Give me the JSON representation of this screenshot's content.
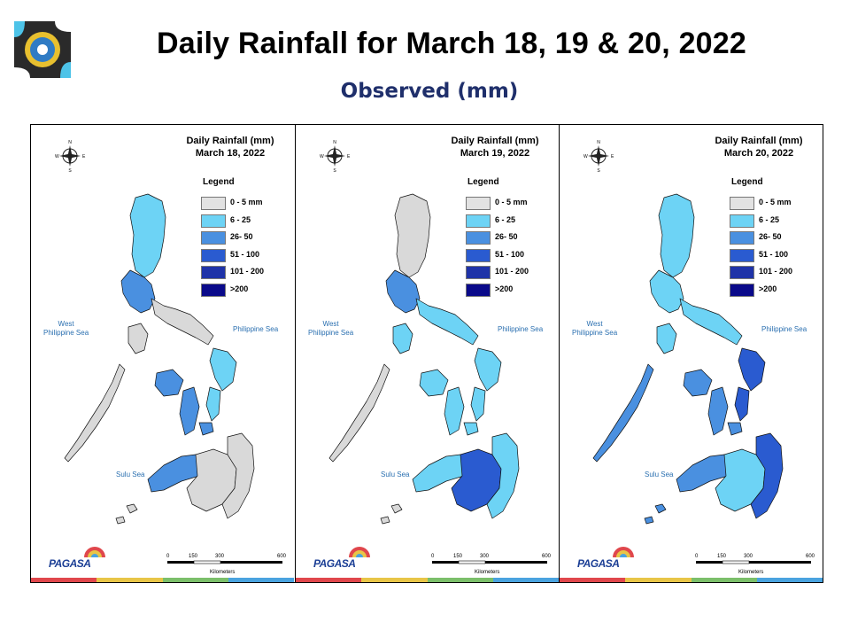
{
  "header": {
    "title": "Daily Rainfall for March 18, 19 & 20, 2022",
    "subtitle": "Observed (mm)"
  },
  "legend": {
    "title": "Legend",
    "items": [
      {
        "label": "0 - 5 mm",
        "color": "#e2e2e2"
      },
      {
        "label": "6 - 25",
        "color": "#6dd3f5"
      },
      {
        "label": "26- 50",
        "color": "#4a90e0"
      },
      {
        "label": "51 - 100",
        "color": "#2a5bd0"
      },
      {
        "label": "101 - 200",
        "color": "#1f33a8"
      },
      {
        "label": ">200",
        "color": "#0a0a8a"
      }
    ]
  },
  "compass": {
    "n": "N",
    "s": "S",
    "e": "E",
    "w": "W"
  },
  "seas": {
    "west": "West\nPhilippine Sea",
    "philippine": "Philippine Sea",
    "sulu": "Sulu Sea"
  },
  "scale": {
    "ticks": [
      "0",
      "150",
      "300",
      "600"
    ],
    "unit": "Kilometers"
  },
  "branding": {
    "agency": "PAGASA",
    "colors": [
      "#e0474c",
      "#e8c547",
      "#7bbf6a",
      "#4aa3df"
    ]
  },
  "panels": [
    {
      "title_line1": "Daily Rainfall (mm)",
      "title_line2": "March 18, 2022",
      "rain": {
        "north_luzon": 1,
        "central_luzon": 2,
        "bicol": 0,
        "eastern_visayas": 2,
        "samar": 1,
        "mindanao_west": 2,
        "mindanao_central": 0,
        "mindanao_east": 0,
        "palawan": 0
      }
    },
    {
      "title_line1": "Daily Rainfall (mm)",
      "title_line2": "March 19, 2022",
      "rain": {
        "north_luzon": 0,
        "central_luzon": 2,
        "bicol": 1,
        "eastern_visayas": 1,
        "samar": 1,
        "mindanao_west": 1,
        "mindanao_central": 3,
        "mindanao_east": 1,
        "palawan": 0
      }
    },
    {
      "title_line1": "Daily Rainfall (mm)",
      "title_line2": "March 20, 2022",
      "rain": {
        "north_luzon": 1,
        "central_luzon": 1,
        "bicol": 1,
        "eastern_visayas": 2,
        "samar": 3,
        "mindanao_west": 2,
        "mindanao_central": 1,
        "mindanao_east": 3,
        "palawan": 2
      }
    }
  ]
}
